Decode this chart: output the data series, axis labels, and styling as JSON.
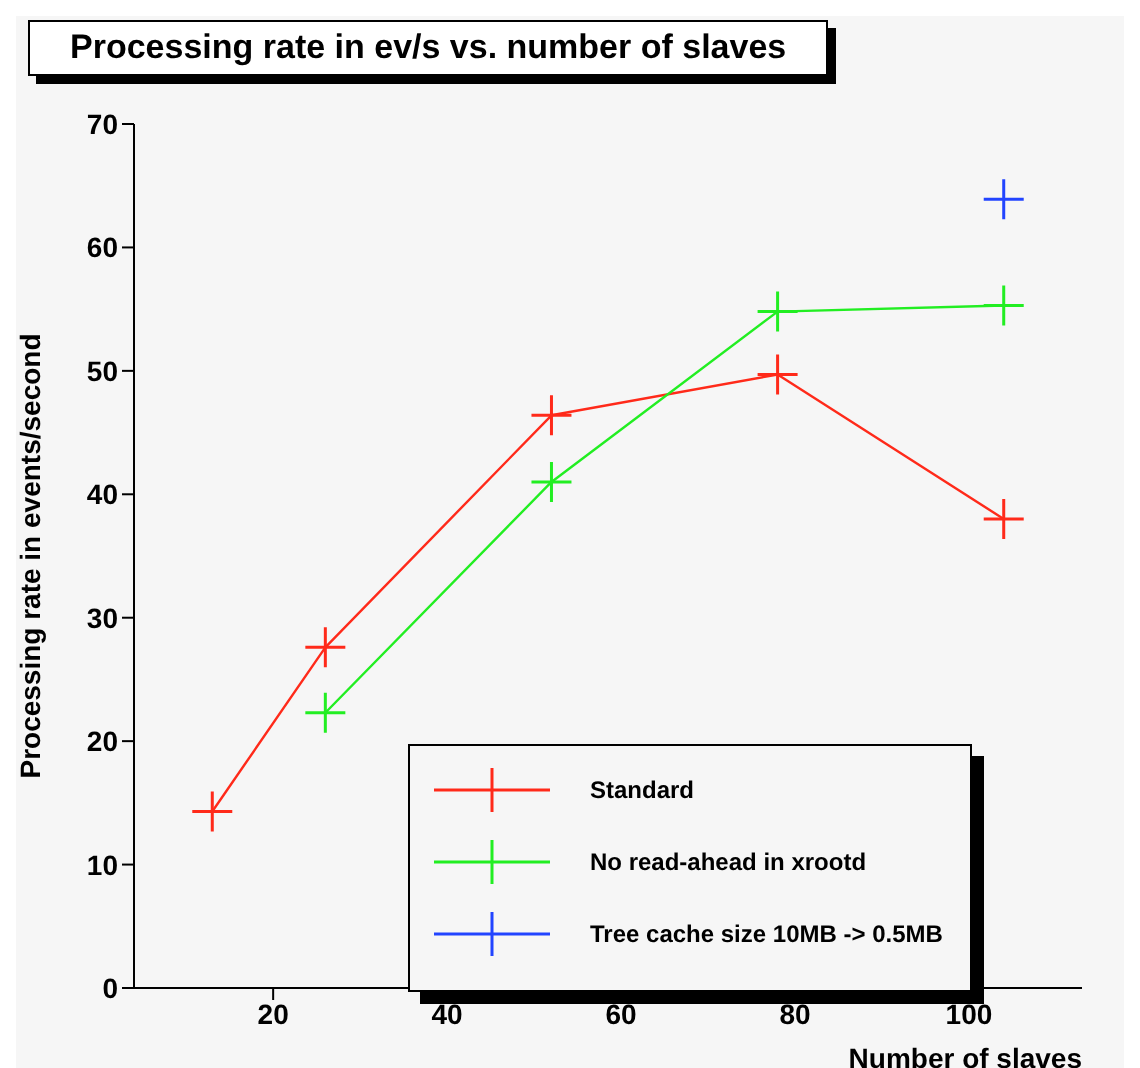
{
  "chart_data": {
    "type": "line",
    "title": "Processing rate in ev/s vs. number of slaves",
    "xlabel": "Number of slaves",
    "ylabel": "Processing rate in events/second",
    "xlim": [
      4,
      113
    ],
    "xticks": [
      20,
      40,
      60,
      80,
      100
    ],
    "ylim": [
      0,
      70
    ],
    "yticks": [
      0,
      10,
      20,
      30,
      40,
      50,
      60,
      70
    ],
    "series": [
      {
        "name": "Standard",
        "color": "#ff2a1a",
        "x": [
          13,
          26,
          52,
          78,
          104
        ],
        "values": [
          14.3,
          27.6,
          46.4,
          49.7,
          38.0
        ]
      },
      {
        "name": "No read-ahead in xrootd",
        "color": "#22ee22",
        "x": [
          26,
          52,
          78,
          104
        ],
        "values": [
          22.3,
          41.0,
          54.8,
          55.3
        ]
      },
      {
        "name": "Tree cache size 10MB -> 0.5MB",
        "color": "#2244ff",
        "x": [
          104
        ],
        "values": [
          63.9
        ]
      }
    ],
    "marker": "cross",
    "legend": "bottom right",
    "grid": false
  }
}
